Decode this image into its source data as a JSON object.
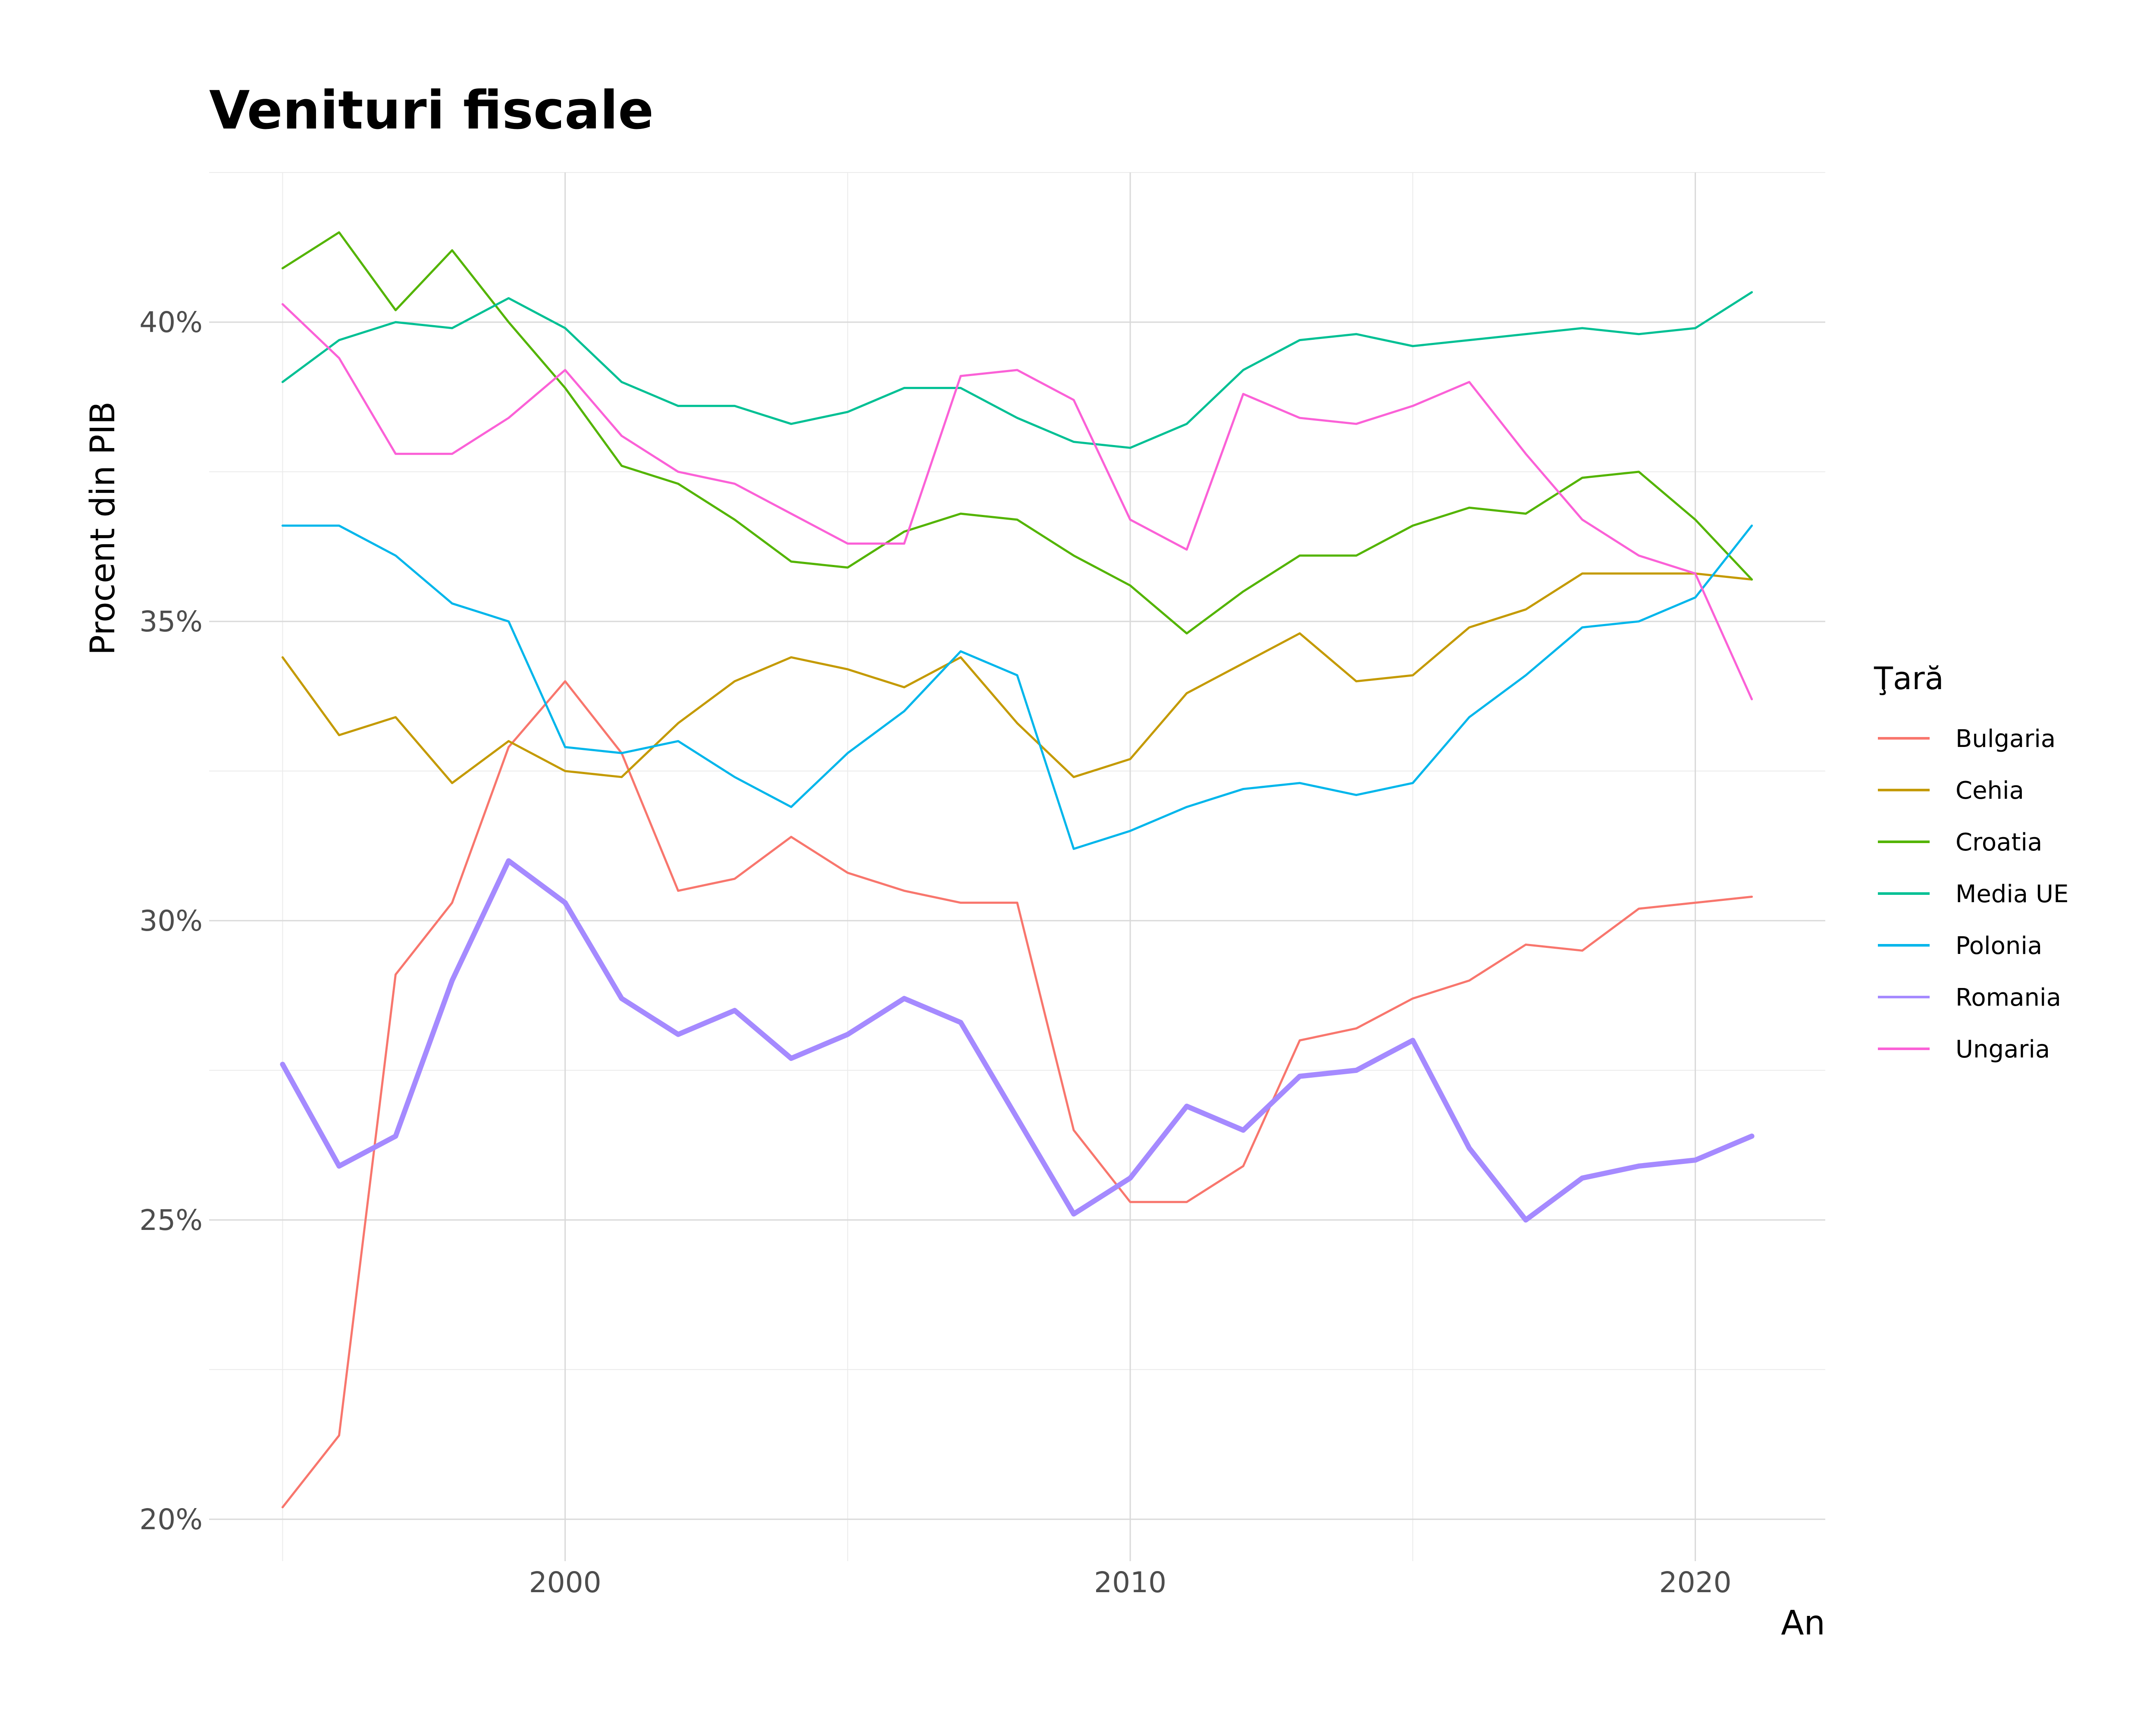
{
  "chart_data": {
    "type": "line",
    "title": "Venituri fiscale",
    "xlabel": "An",
    "ylabel": "Procent din PIB",
    "legend_title": "Ţară",
    "legend_position": "right",
    "grid": true,
    "xlim": [
      1993.7,
      2022.3
    ],
    "ylim": [
      19.3,
      42.5
    ],
    "x_ticks": [
      2000,
      2010,
      2020
    ],
    "x_minor_ticks": [
      1995,
      2005,
      2015
    ],
    "y_ticks": [
      20,
      25,
      30,
      35,
      40
    ],
    "y_tick_labels": [
      "20%",
      "25%",
      "30%",
      "35%",
      "40%"
    ],
    "y_minor_ticks": [
      22.5,
      27.5,
      32.5,
      37.5,
      42.5
    ],
    "x": [
      1995,
      1996,
      1997,
      1998,
      1999,
      2000,
      2001,
      2002,
      2003,
      2004,
      2005,
      2006,
      2007,
      2008,
      2009,
      2010,
      2011,
      2012,
      2013,
      2014,
      2015,
      2016,
      2017,
      2018,
      2019,
      2020,
      2021
    ],
    "series": [
      {
        "name": "Bulgaria",
        "color": "#F8766D",
        "width": 5,
        "values": [
          20.2,
          21.4,
          29.1,
          30.3,
          32.9,
          34.0,
          32.8,
          30.5,
          30.7,
          31.4,
          30.8,
          30.5,
          30.3,
          30.3,
          26.5,
          25.3,
          25.3,
          25.9,
          28.0,
          28.2,
          28.7,
          29.0,
          29.6,
          29.5,
          30.2,
          30.3,
          30.4
        ]
      },
      {
        "name": "Cehia",
        "color": "#C49A00",
        "width": 5,
        "values": [
          34.4,
          33.1,
          33.4,
          32.3,
          33.0,
          32.5,
          32.4,
          33.3,
          34.0,
          34.4,
          34.2,
          33.9,
          34.4,
          33.3,
          32.4,
          32.7,
          33.8,
          34.3,
          34.8,
          34.0,
          34.1,
          34.9,
          35.2,
          35.8,
          35.8,
          35.8,
          35.7
        ]
      },
      {
        "name": "Croatia",
        "color": "#53B400",
        "width": 5,
        "values": [
          40.9,
          41.5,
          40.2,
          41.2,
          40.0,
          38.9,
          37.6,
          37.3,
          36.7,
          36.0,
          35.9,
          36.5,
          36.8,
          36.7,
          36.1,
          35.6,
          34.8,
          35.5,
          36.1,
          36.1,
          36.6,
          36.9,
          36.8,
          37.4,
          37.5,
          36.7,
          35.7
        ]
      },
      {
        "name": "Media UE",
        "color": "#00C094",
        "width": 5,
        "values": [
          39.0,
          39.7,
          40.0,
          39.9,
          40.4,
          39.9,
          39.0,
          38.6,
          38.6,
          38.3,
          38.5,
          38.9,
          38.9,
          38.4,
          38.0,
          37.9,
          38.3,
          39.2,
          39.7,
          39.8,
          39.6,
          39.7,
          39.8,
          39.9,
          39.8,
          39.9,
          40.5
        ]
      },
      {
        "name": "Polonia",
        "color": "#00B6EB",
        "width": 5,
        "values": [
          36.6,
          36.6,
          36.1,
          35.3,
          35.0,
          32.9,
          32.8,
          33.0,
          32.4,
          31.9,
          32.8,
          33.5,
          34.5,
          34.1,
          31.2,
          31.5,
          31.9,
          32.2,
          32.3,
          32.1,
          32.3,
          33.4,
          34.1,
          34.9,
          35.0,
          35.4,
          36.6
        ]
      },
      {
        "name": "Romania",
        "color": "#A58AFF",
        "width": 12,
        "values": [
          27.6,
          25.9,
          26.4,
          29.0,
          31.0,
          30.3,
          28.7,
          28.1,
          28.5,
          27.7,
          28.1,
          28.7,
          28.3,
          26.7,
          25.1,
          25.7,
          26.9,
          26.5,
          27.4,
          27.5,
          28.0,
          26.2,
          25.0,
          25.7,
          25.9,
          26.0,
          26.4
        ]
      },
      {
        "name": "Ungaria",
        "color": "#FB61D7",
        "width": 5,
        "values": [
          40.3,
          39.4,
          37.8,
          37.8,
          38.4,
          39.2,
          38.1,
          37.5,
          37.3,
          36.8,
          36.3,
          36.3,
          39.1,
          39.2,
          38.7,
          36.7,
          36.2,
          38.8,
          38.4,
          38.3,
          38.6,
          39.0,
          37.8,
          36.7,
          36.1,
          35.8,
          33.7
        ]
      }
    ]
  }
}
